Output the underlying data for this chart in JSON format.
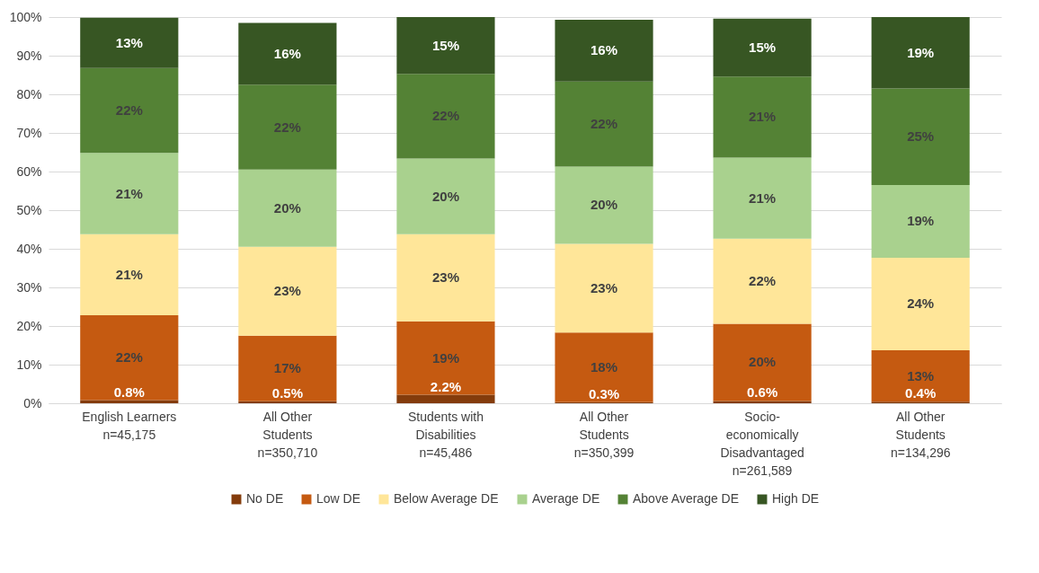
{
  "chart_data": {
    "type": "bar",
    "stacked": true,
    "categories": [
      "English Learners\nn=45,175",
      "All Other\nStudents\nn=350,710",
      "Students with\nDisabilities\nn=45,486",
      "All Other\nStudents\nn=350,399",
      "Socio-\neconomically\nDisadvantaged\nn=261,589",
      "All Other\nStudents\nn=134,296"
    ],
    "series": [
      {
        "name": "No DE",
        "color": "#843c0c",
        "values": [
          0.8,
          0.5,
          2.2,
          0.3,
          0.6,
          0.4
        ],
        "value_labels": [
          "0.8%",
          "0.5%",
          "2.2%",
          "0.3%",
          "0.6%",
          "0.4%"
        ]
      },
      {
        "name": "Low DE",
        "color": "#c55a11",
        "values": [
          22,
          17,
          19,
          18,
          20,
          13.3
        ],
        "value_labels": [
          "22%",
          "17%",
          "19%",
          "18%",
          "20%",
          "13%"
        ]
      },
      {
        "name": "Below Average DE",
        "color": "#ffe699",
        "values": [
          21,
          23,
          22.6,
          23,
          22,
          24
        ],
        "value_labels": [
          "21%",
          "23%",
          "23%",
          "23%",
          "22%",
          "24%"
        ]
      },
      {
        "name": "Average DE",
        "color": "#a9d18e",
        "values": [
          21,
          20,
          19.6,
          20,
          21,
          18.8
        ],
        "value_labels": [
          "21%",
          "20%",
          "20%",
          "20%",
          "21%",
          "19%"
        ]
      },
      {
        "name": "Above Average DE",
        "color": "#548235",
        "values": [
          22,
          22,
          21.9,
          22,
          21,
          25
        ],
        "value_labels": [
          "22%",
          "22%",
          "22%",
          "22%",
          "21%",
          "25%"
        ]
      },
      {
        "name": "High DE",
        "color": "#375623",
        "values": [
          13,
          16,
          14.7,
          16,
          15,
          18.5
        ],
        "value_labels": [
          "13%",
          "16%",
          "15%",
          "16%",
          "15%",
          "19%"
        ]
      }
    ],
    "ylim": [
      0,
      100
    ],
    "yticks": [
      {
        "value": 0,
        "label": "0%"
      },
      {
        "value": 10,
        "label": "10%"
      },
      {
        "value": 20,
        "label": "20%"
      },
      {
        "value": 30,
        "label": "30%"
      },
      {
        "value": 40,
        "label": "40%"
      },
      {
        "value": 50,
        "label": "50%"
      },
      {
        "value": 60,
        "label": "60%"
      },
      {
        "value": 70,
        "label": "70%"
      },
      {
        "value": 80,
        "label": "80%"
      },
      {
        "value": 90,
        "label": "90%"
      },
      {
        "value": 100,
        "label": "100%"
      }
    ],
    "grid": "y",
    "legend": "bottom"
  }
}
